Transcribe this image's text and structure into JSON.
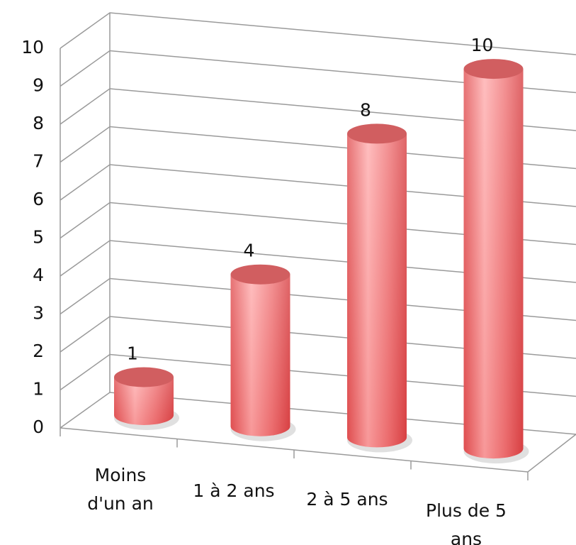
{
  "chart_data": {
    "type": "bar3d",
    "categories": [
      "Moins d'un an",
      "1 à 2 ans",
      "2 à 5 ans",
      "Plus de 5 ans"
    ],
    "values": [
      1,
      4,
      8,
      10
    ],
    "color": "#e8696b",
    "ylim": [
      0,
      10
    ],
    "yticks": [
      0,
      1,
      2,
      3,
      4,
      5,
      6,
      7,
      8,
      9,
      10
    ],
    "grid": true
  }
}
